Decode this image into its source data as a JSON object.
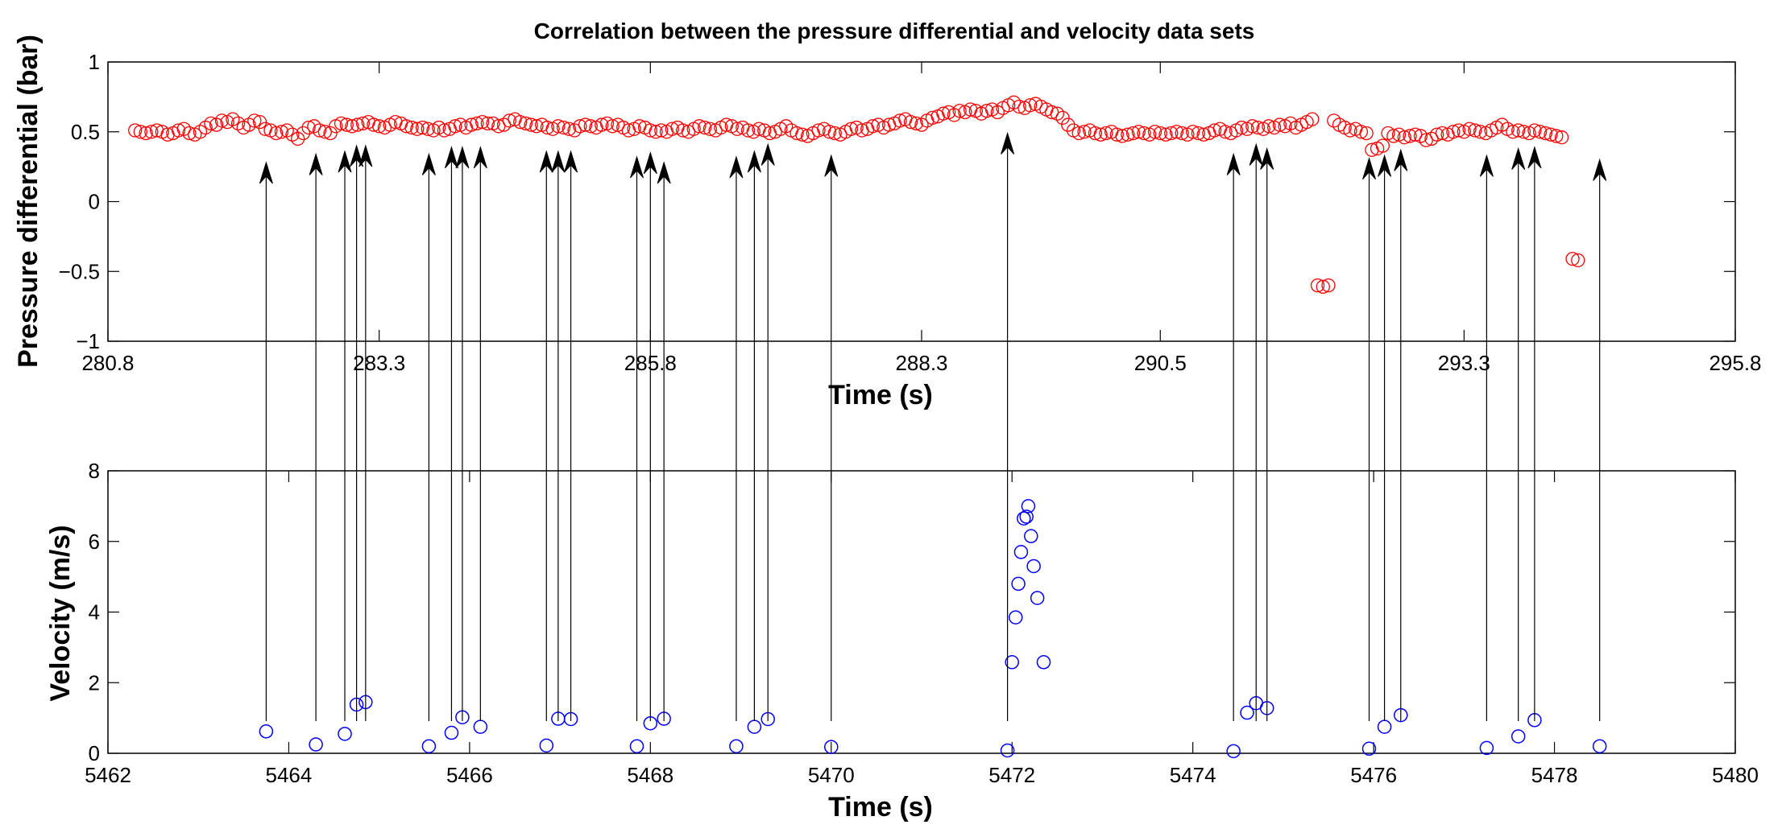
{
  "chart_data": [
    {
      "type": "scatter",
      "title": "Correlation between the pressure differential and velocity data sets",
      "xlabel": "Time (s)",
      "ylabel": "Pressure differential (bar)",
      "xlim": [
        280.8,
        295.8
      ],
      "ylim": [
        -1,
        1
      ],
      "xticks": [
        280.8,
        283.3,
        285.8,
        288.3,
        290.5,
        293.3,
        295.8
      ],
      "xtick_labels": [
        "280.8",
        "283.3",
        "285.8",
        "288.3",
        "290.5",
        "293.3",
        "295.8"
      ],
      "yticks": [
        -1,
        -0.5,
        0,
        0.5,
        1
      ],
      "ytick_labels": [
        "−1",
        "−0.5",
        "0",
        "0.5",
        "1"
      ],
      "marker": "circle",
      "marker_color": "#ff0000",
      "series": [
        {
          "name": "Pressure differential",
          "x": [
            281.05,
            281.1,
            281.15,
            281.2,
            281.25,
            281.3,
            281.35,
            281.4,
            281.45,
            281.5,
            281.55,
            281.6,
            281.65,
            281.7,
            281.75,
            281.8,
            281.85,
            281.9,
            281.95,
            282.0,
            282.05,
            282.1,
            282.15,
            282.2,
            282.25,
            282.3,
            282.35,
            282.4,
            282.45,
            282.5,
            282.55,
            282.6,
            282.65,
            282.7,
            282.75,
            282.8,
            282.85,
            282.9,
            282.95,
            283.0,
            283.05,
            283.1,
            283.15,
            283.2,
            283.25,
            283.3,
            283.35,
            283.4,
            283.45,
            283.5,
            283.55,
            283.6,
            283.65,
            283.7,
            283.75,
            283.8,
            283.85,
            283.9,
            283.95,
            284.0,
            284.05,
            284.1,
            284.15,
            284.2,
            284.25,
            284.3,
            284.35,
            284.4,
            284.45,
            284.5,
            284.55,
            284.6,
            284.65,
            284.7,
            284.75,
            284.8,
            284.85,
            284.9,
            284.95,
            285.0,
            285.05,
            285.1,
            285.15,
            285.2,
            285.25,
            285.3,
            285.35,
            285.4,
            285.45,
            285.5,
            285.55,
            285.6,
            285.65,
            285.7,
            285.75,
            285.8,
            285.85,
            285.9,
            285.95,
            286.0,
            286.05,
            286.1,
            286.15,
            286.2,
            286.25,
            286.3,
            286.35,
            286.4,
            286.45,
            286.5,
            286.55,
            286.6,
            286.65,
            286.7,
            286.75,
            286.8,
            286.85,
            286.9,
            286.95,
            287.0,
            287.05,
            287.1,
            287.15,
            287.2,
            287.25,
            287.3,
            287.35,
            287.4,
            287.45,
            287.5,
            287.55,
            287.6,
            287.65,
            287.7,
            287.75,
            287.8,
            287.85,
            287.9,
            287.95,
            288.0,
            288.05,
            288.1,
            288.15,
            288.2,
            288.25,
            288.3,
            288.35,
            288.4,
            288.45,
            288.5,
            288.55,
            288.6,
            288.65,
            288.7,
            288.75,
            288.8,
            288.85,
            288.9,
            288.95,
            289.0,
            289.05,
            289.1,
            289.15,
            289.2,
            289.25,
            289.3,
            289.35,
            289.4,
            289.45,
            289.5,
            289.55,
            289.6,
            289.65,
            289.7,
            289.75,
            289.8,
            289.85,
            289.9,
            289.95,
            290.0,
            290.05,
            290.1,
            290.15,
            290.2,
            290.25,
            290.3,
            290.35,
            290.4,
            290.45,
            290.5,
            290.55,
            290.6,
            290.65,
            290.7,
            290.75,
            290.8,
            290.85,
            290.9,
            290.95,
            291.0,
            291.05,
            291.1,
            291.15,
            291.2,
            291.25,
            291.3,
            291.35,
            291.4,
            291.45,
            291.5,
            291.55,
            291.6,
            291.65,
            291.7,
            291.75,
            291.8,
            291.85,
            291.9,
            291.95,
            292.0,
            292.05,
            292.1,
            292.15,
            292.2,
            292.25,
            292.3,
            292.35,
            292.4,
            292.45,
            292.5,
            292.55,
            292.6,
            292.65,
            292.7,
            292.75,
            292.8,
            292.85,
            292.9,
            292.95,
            293.0,
            293.05,
            293.1,
            293.15,
            293.2,
            293.25,
            293.3,
            293.35,
            293.4,
            293.45,
            293.5,
            293.55,
            293.6,
            293.65,
            293.7,
            293.75,
            293.8,
            293.85,
            293.9,
            293.95,
            294.0,
            294.05,
            294.1,
            294.15,
            294.2,
            294.3,
            294.35
          ],
          "y": [
            0.51,
            0.5,
            0.49,
            0.5,
            0.51,
            0.5,
            0.48,
            0.49,
            0.51,
            0.52,
            0.49,
            0.48,
            0.5,
            0.53,
            0.56,
            0.55,
            0.58,
            0.57,
            0.59,
            0.56,
            0.53,
            0.55,
            0.58,
            0.57,
            0.52,
            0.51,
            0.49,
            0.5,
            0.51,
            0.48,
            0.45,
            0.49,
            0.53,
            0.54,
            0.51,
            0.5,
            0.49,
            0.54,
            0.56,
            0.55,
            0.54,
            0.55,
            0.56,
            0.57,
            0.55,
            0.54,
            0.53,
            0.55,
            0.57,
            0.56,
            0.54,
            0.53,
            0.52,
            0.53,
            0.52,
            0.51,
            0.53,
            0.51,
            0.52,
            0.54,
            0.55,
            0.53,
            0.55,
            0.56,
            0.57,
            0.56,
            0.56,
            0.54,
            0.55,
            0.58,
            0.59,
            0.57,
            0.56,
            0.55,
            0.54,
            0.55,
            0.53,
            0.52,
            0.54,
            0.53,
            0.52,
            0.51,
            0.54,
            0.55,
            0.54,
            0.53,
            0.55,
            0.56,
            0.54,
            0.55,
            0.53,
            0.51,
            0.52,
            0.54,
            0.53,
            0.51,
            0.5,
            0.51,
            0.5,
            0.52,
            0.53,
            0.51,
            0.5,
            0.52,
            0.54,
            0.53,
            0.52,
            0.51,
            0.53,
            0.55,
            0.54,
            0.52,
            0.53,
            0.51,
            0.5,
            0.52,
            0.51,
            0.49,
            0.5,
            0.52,
            0.54,
            0.51,
            0.49,
            0.48,
            0.47,
            0.49,
            0.51,
            0.52,
            0.5,
            0.49,
            0.48,
            0.5,
            0.52,
            0.53,
            0.51,
            0.52,
            0.54,
            0.55,
            0.53,
            0.55,
            0.56,
            0.58,
            0.59,
            0.57,
            0.56,
            0.55,
            0.58,
            0.6,
            0.61,
            0.63,
            0.64,
            0.62,
            0.65,
            0.64,
            0.66,
            0.65,
            0.63,
            0.65,
            0.66,
            0.64,
            0.67,
            0.69,
            0.71,
            0.68,
            0.67,
            0.69,
            0.7,
            0.68,
            0.66,
            0.64,
            0.63,
            0.6,
            0.55,
            0.51,
            0.49,
            0.5,
            0.51,
            0.49,
            0.48,
            0.49,
            0.5,
            0.48,
            0.47,
            0.48,
            0.49,
            0.5,
            0.49,
            0.48,
            0.5,
            0.49,
            0.48,
            0.49,
            0.5,
            0.49,
            0.48,
            0.5,
            0.49,
            0.48,
            0.49,
            0.51,
            0.52,
            0.5,
            0.49,
            0.51,
            0.53,
            0.52,
            0.54,
            0.53,
            0.52,
            0.54,
            0.53,
            0.55,
            0.54,
            0.56,
            0.53,
            0.55,
            0.57,
            0.59,
            -0.6,
            -0.61,
            -0.6,
            0.58,
            0.55,
            0.53,
            0.51,
            0.52,
            0.5,
            0.49,
            0.37,
            0.38,
            0.4,
            0.49,
            0.47,
            0.48,
            0.46,
            0.47,
            0.48,
            0.47,
            0.44,
            0.45,
            0.48,
            0.49,
            0.48,
            0.5,
            0.51,
            0.5,
            0.52,
            0.51,
            0.5,
            0.49,
            0.51,
            0.53,
            0.55,
            0.52,
            0.5,
            0.51,
            0.5,
            0.49,
            0.51,
            0.5,
            0.49,
            0.48,
            0.47,
            0.46,
            -0.41,
            -0.42
          ]
        }
      ]
    },
    {
      "type": "scatter",
      "xlabel": "Time (s)",
      "ylabel": "Velocity (m/s)",
      "xlim": [
        5462,
        5480
      ],
      "ylim": [
        0,
        8
      ],
      "xticks": [
        5462,
        5464,
        5466,
        5468,
        5470,
        5472,
        5474,
        5476,
        5478,
        5480
      ],
      "xtick_labels": [
        "5462",
        "5464",
        "5466",
        "5468",
        "5470",
        "5472",
        "5474",
        "5476",
        "5478",
        "5480"
      ],
      "yticks": [
        0,
        2,
        4,
        6,
        8
      ],
      "ytick_labels": [
        "0",
        "2",
        "4",
        "6",
        "8"
      ],
      "marker": "circle",
      "marker_color": "#0000ff",
      "series": [
        {
          "name": "Velocity",
          "x": [
            5463.75,
            5464.3,
            5464.62,
            5464.75,
            5464.85,
            5465.55,
            5465.8,
            5465.92,
            5466.12,
            5466.85,
            5466.98,
            5467.12,
            5467.85,
            5468.0,
            5468.15,
            5468.95,
            5469.15,
            5469.3,
            5470.0,
            5471.95,
            5472.0,
            5472.04,
            5472.07,
            5472.1,
            5472.13,
            5472.16,
            5472.18,
            5472.21,
            5472.24,
            5472.28,
            5472.35,
            5474.45,
            5474.6,
            5474.7,
            5474.82,
            5475.95,
            5476.12,
            5476.3,
            5477.25,
            5477.6,
            5477.78,
            5478.5
          ],
          "y": [
            0.62,
            0.25,
            0.55,
            1.38,
            1.45,
            0.2,
            0.58,
            1.02,
            0.75,
            0.22,
            0.98,
            0.97,
            0.2,
            0.85,
            0.98,
            0.2,
            0.75,
            0.97,
            0.18,
            0.08,
            2.58,
            3.85,
            4.8,
            5.7,
            6.65,
            6.7,
            7.0,
            6.15,
            5.3,
            4.4,
            2.58,
            0.06,
            1.15,
            1.42,
            1.28,
            0.13,
            0.75,
            1.08,
            0.15,
            0.48,
            0.94,
            0.2
          ]
        }
      ]
    }
  ],
  "arrows": {
    "color": "#000000",
    "links": [
      {
        "velocity_x": 5463.75,
        "pressure_value": 0.28
      },
      {
        "velocity_x": 5464.3,
        "pressure_value": 0.34
      },
      {
        "velocity_x": 5464.62,
        "pressure_value": 0.36
      },
      {
        "velocity_x": 5464.75,
        "pressure_value": 0.4
      },
      {
        "velocity_x": 5464.85,
        "pressure_value": 0.4
      },
      {
        "velocity_x": 5465.55,
        "pressure_value": 0.34
      },
      {
        "velocity_x": 5465.8,
        "pressure_value": 0.39
      },
      {
        "velocity_x": 5465.92,
        "pressure_value": 0.39
      },
      {
        "velocity_x": 5466.12,
        "pressure_value": 0.39
      },
      {
        "velocity_x": 5466.85,
        "pressure_value": 0.36
      },
      {
        "velocity_x": 5466.98,
        "pressure_value": 0.36
      },
      {
        "velocity_x": 5467.12,
        "pressure_value": 0.36
      },
      {
        "velocity_x": 5467.85,
        "pressure_value": 0.32
      },
      {
        "velocity_x": 5468.0,
        "pressure_value": 0.35
      },
      {
        "velocity_x": 5468.15,
        "pressure_value": 0.28
      },
      {
        "velocity_x": 5468.95,
        "pressure_value": 0.32
      },
      {
        "velocity_x": 5469.15,
        "pressure_value": 0.36
      },
      {
        "velocity_x": 5469.3,
        "pressure_value": 0.41
      },
      {
        "velocity_x": 5470.0,
        "pressure_value": 0.33
      },
      {
        "velocity_x": 5471.95,
        "pressure_value": 0.49
      },
      {
        "velocity_x": 5474.45,
        "pressure_value": 0.34
      },
      {
        "velocity_x": 5474.7,
        "pressure_value": 0.41
      },
      {
        "velocity_x": 5474.82,
        "pressure_value": 0.38
      },
      {
        "velocity_x": 5475.95,
        "pressure_value": 0.31
      },
      {
        "velocity_x": 5476.12,
        "pressure_value": 0.33
      },
      {
        "velocity_x": 5476.3,
        "pressure_value": 0.37
      },
      {
        "velocity_x": 5477.25,
        "pressure_value": 0.33
      },
      {
        "velocity_x": 5477.6,
        "pressure_value": 0.38
      },
      {
        "velocity_x": 5477.78,
        "pressure_value": 0.39
      },
      {
        "velocity_x": 5478.5,
        "pressure_value": 0.3
      }
    ]
  }
}
